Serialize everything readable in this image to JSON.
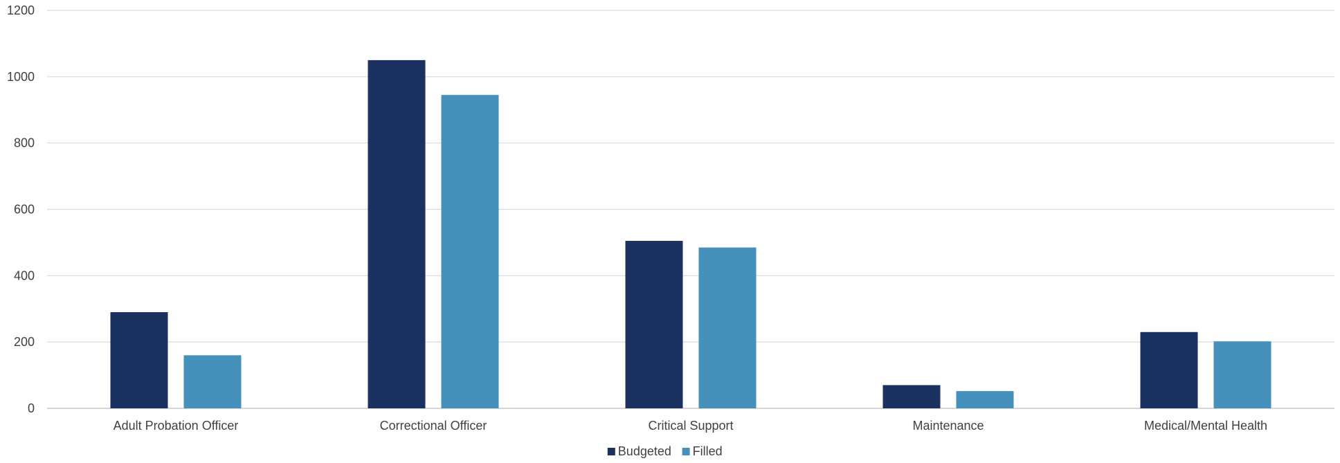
{
  "chart_data": {
    "type": "bar",
    "categories": [
      "Adult Probation Officer",
      "Correctional Officer",
      "Critical Support",
      "Maintenance",
      "Medical/Mental Health"
    ],
    "series": [
      {
        "name": "Budgeted",
        "color": "#1b3260",
        "values": [
          290,
          1050,
          505,
          70,
          230
        ]
      },
      {
        "name": "Filled",
        "color": "#4591bb",
        "values": [
          160,
          945,
          485,
          52,
          202
        ]
      }
    ],
    "ylim": [
      0,
      1200
    ],
    "yticks": [
      0,
      200,
      400,
      600,
      800,
      1000,
      1200
    ],
    "grid": true,
    "legend": "bottom-center",
    "title": "",
    "xlabel": "",
    "ylabel": ""
  }
}
